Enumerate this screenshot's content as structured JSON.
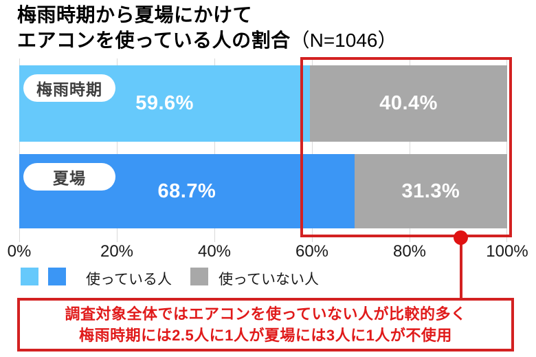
{
  "title": {
    "line1": "梅雨時期から夏場にかけて",
    "line2": "エアコンを使っている人の割合",
    "n_label": "（N=1046）"
  },
  "chart_data": {
    "type": "bar",
    "orientation": "horizontal",
    "stacked": true,
    "title": "梅雨時期から夏場にかけてエアコンを使っている人の割合（N=1046）",
    "sample_size": "N=1046",
    "categories": [
      "梅雨時期",
      "夏場"
    ],
    "series": [
      {
        "name": "使っている人",
        "values": [
          59.6,
          68.7
        ]
      },
      {
        "name": "使っていない人",
        "values": [
          40.4,
          31.3
        ]
      }
    ],
    "x_axis": {
      "min": 0,
      "max": 100,
      "ticks": [
        "0%",
        "20%",
        "40%",
        "60%",
        "80%",
        "100%"
      ],
      "grid": true
    },
    "rows": [
      {
        "category": "梅雨時期",
        "using": 59.6,
        "using_label": "59.6%",
        "using_color": "#66c9fb",
        "not_using": 40.4,
        "not_using_label": "40.4%",
        "not_using_color": "#a8a8a8"
      },
      {
        "category": "夏場",
        "using": 68.7,
        "using_label": "68.7%",
        "using_color": "#3b96f5",
        "not_using": 31.3,
        "not_using_label": "31.3%",
        "not_using_color": "#a8a8a8"
      }
    ]
  },
  "legend": {
    "using": {
      "label": "使っている人",
      "swatch_colors": [
        "#66c9fb",
        "#3b96f5"
      ]
    },
    "not_using": {
      "label": "使っていない人",
      "swatch_color": "#a8a8a8"
    }
  },
  "highlight": {
    "color": "#d32121"
  },
  "callout": {
    "line1": "調査対象全体ではエアコンを使っていない人が比較的多く",
    "line2": "梅雨時期には2.5人に1人が夏場には3人に1人が不使用"
  }
}
